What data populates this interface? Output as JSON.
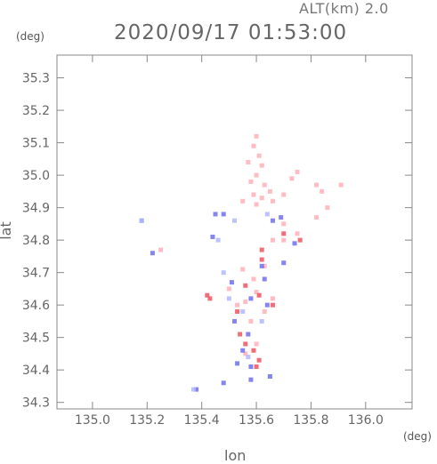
{
  "header": {
    "altitude_label": "ALT(km) 2.0",
    "datetime": "2020/09/17 01:53:00",
    "y_unit": "(deg)",
    "x_unit": "(deg)"
  },
  "colors": {
    "frame": "#888888",
    "pink": "#ffb0b8",
    "light_pink": "#ffd0d6",
    "red": "#ee5560",
    "blue": "#7070ee",
    "light_blue": "#b0b8ff"
  },
  "chart_data": {
    "type": "scatter",
    "title": "2020/09/17 01:53:00",
    "xlabel": "lon",
    "ylabel": "lat",
    "xlim": [
      134.87,
      136.17
    ],
    "ylim": [
      34.28,
      35.37
    ],
    "xticks": [
      135.0,
      135.2,
      135.4,
      135.6,
      135.8,
      136.0
    ],
    "yticks": [
      34.3,
      34.4,
      34.5,
      34.6,
      34.7,
      34.8,
      34.9,
      35.0,
      35.1,
      35.2,
      35.3
    ],
    "xtick_labels": [
      "135.0",
      "135.2",
      "135.4",
      "135.6",
      "135.8",
      "136.0"
    ],
    "ytick_labels": [
      "34.3",
      "34.4",
      "34.5",
      "34.6",
      "34.7",
      "34.8",
      "34.9",
      "35.0",
      "35.1",
      "35.2",
      "35.3"
    ],
    "grid": false,
    "series": [
      {
        "color": "pink",
        "points": [
          [
            135.6,
            35.12
          ],
          [
            135.59,
            35.09
          ],
          [
            135.61,
            35.06
          ],
          [
            135.57,
            35.04
          ],
          [
            135.62,
            35.03
          ],
          [
            135.6,
            35.0
          ],
          [
            135.58,
            34.98
          ],
          [
            135.63,
            34.97
          ],
          [
            135.65,
            34.95
          ],
          [
            135.59,
            34.94
          ],
          [
            135.62,
            34.93
          ],
          [
            135.66,
            34.92
          ],
          [
            135.55,
            34.92
          ],
          [
            135.6,
            34.91
          ],
          [
            135.7,
            34.94
          ],
          [
            135.82,
            34.97
          ],
          [
            135.84,
            34.95
          ],
          [
            135.91,
            34.97
          ],
          [
            135.75,
            35.01
          ],
          [
            135.73,
            34.99
          ],
          [
            135.86,
            34.9
          ],
          [
            135.82,
            34.87
          ],
          [
            135.7,
            34.85
          ],
          [
            135.66,
            34.8
          ],
          [
            135.75,
            34.82
          ],
          [
            135.63,
            34.72
          ],
          [
            135.55,
            34.71
          ],
          [
            135.59,
            34.68
          ],
          [
            135.6,
            34.64
          ],
          [
            135.56,
            34.61
          ],
          [
            135.63,
            34.58
          ],
          [
            135.58,
            34.55
          ],
          [
            135.6,
            34.48
          ],
          [
            135.56,
            34.45
          ],
          [
            135.7,
            34.8
          ],
          [
            135.53,
            34.6
          ],
          [
            135.66,
            34.62
          ],
          [
            135.5,
            34.65
          ],
          [
            135.25,
            34.77
          ]
        ]
      },
      {
        "color": "red",
        "points": [
          [
            135.56,
            34.66
          ],
          [
            135.61,
            34.63
          ],
          [
            135.53,
            34.58
          ],
          [
            135.66,
            34.6
          ],
          [
            135.56,
            34.48
          ],
          [
            135.59,
            34.46
          ],
          [
            135.61,
            34.43
          ],
          [
            135.6,
            34.41
          ],
          [
            135.54,
            34.51
          ],
          [
            135.7,
            34.82
          ],
          [
            135.76,
            34.8
          ],
          [
            135.62,
            34.77
          ],
          [
            135.62,
            34.74
          ],
          [
            135.43,
            34.62
          ],
          [
            135.42,
            34.63
          ]
        ]
      },
      {
        "color": "blue",
        "points": [
          [
            135.51,
            34.67
          ],
          [
            135.58,
            34.62
          ],
          [
            135.64,
            34.6
          ],
          [
            135.52,
            34.55
          ],
          [
            135.57,
            34.51
          ],
          [
            135.55,
            34.46
          ],
          [
            135.53,
            34.42
          ],
          [
            135.58,
            34.41
          ],
          [
            135.63,
            34.68
          ],
          [
            135.69,
            34.87
          ],
          [
            135.66,
            34.86
          ],
          [
            135.74,
            34.79
          ],
          [
            135.48,
            34.88
          ],
          [
            135.38,
            34.34
          ],
          [
            135.48,
            34.36
          ],
          [
            135.58,
            34.37
          ],
          [
            135.65,
            34.38
          ],
          [
            135.18,
            34.86
          ],
          [
            135.22,
            34.76
          ],
          [
            135.45,
            34.88
          ],
          [
            135.44,
            34.81
          ],
          [
            135.7,
            34.73
          ],
          [
            135.62,
            34.72
          ]
        ]
      },
      {
        "color": "light_blue",
        "points": [
          [
            135.5,
            34.62
          ],
          [
            135.55,
            34.58
          ],
          [
            135.62,
            34.55
          ],
          [
            135.57,
            34.44
          ],
          [
            135.46,
            34.8
          ],
          [
            135.52,
            34.86
          ],
          [
            135.18,
            34.86
          ],
          [
            135.37,
            34.34
          ],
          [
            135.48,
            34.7
          ],
          [
            135.64,
            34.88
          ]
        ]
      }
    ]
  }
}
